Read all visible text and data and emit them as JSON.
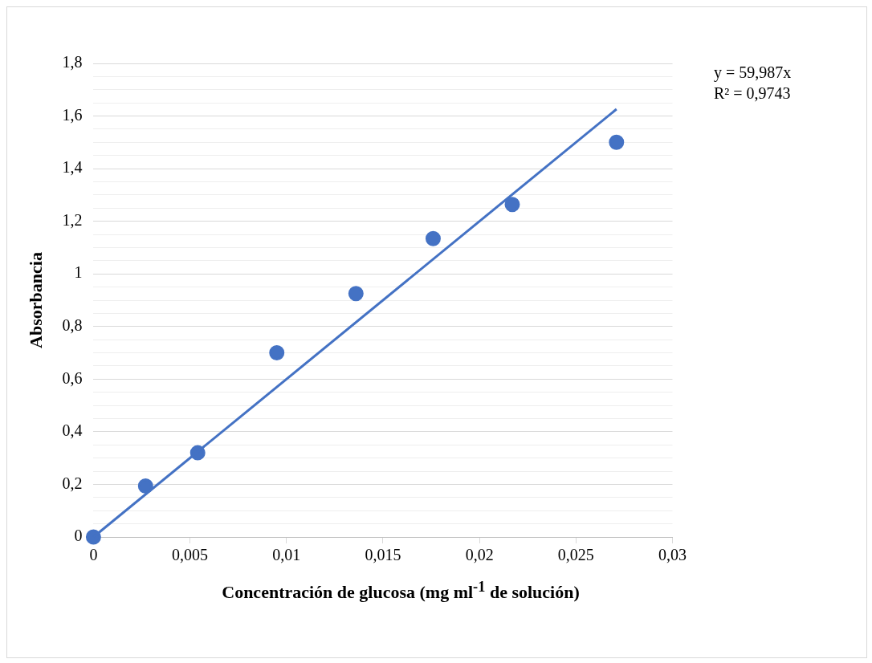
{
  "chart_data": {
    "type": "scatter",
    "xlabel": "Concentración de glucosa (mg ml$^{-1}$ de solución)",
    "ylabel": "Absorbancia",
    "annotations": [
      "y = 59,987x",
      "R² = 0,9743"
    ],
    "series": [
      {
        "color": "#4472c4",
        "marker": "circle",
        "x": [
          0,
          0.0027,
          0.0054,
          0.0095,
          0.0136,
          0.0176,
          0.0217,
          0.0271
        ],
        "values": [
          0,
          0.194,
          0.32,
          0.7,
          0.925,
          1.134,
          1.264,
          1.5
        ]
      },
      {
        "type": "line",
        "color": "#4472c4",
        "marker": "none",
        "line_style": "solid",
        "x": [
          0,
          0.0271
        ],
        "values": [
          0,
          1.626
        ]
      }
    ],
    "xlim": [
      0,
      0.03
    ],
    "xticks": [
      0,
      {
        "value": 0.005,
        "label": "0,005"
      },
      {
        "value": 0.01,
        "label": "0,01"
      },
      {
        "value": 0.015,
        "label": "0,015"
      },
      {
        "value": 0.02,
        "label": "0,02"
      },
      {
        "value": 0.025,
        "label": "0,025"
      },
      {
        "value": 0.03,
        "label": "0,03"
      }
    ],
    "ylim": [
      0,
      1.8
    ],
    "yticks": [
      0,
      {
        "value": 0.05,
        "label": null
      },
      {
        "value": 0.1,
        "label": null
      },
      {
        "value": 0.15,
        "label": null
      },
      {
        "value": 0.2,
        "label": "0,2"
      },
      {
        "value": 0.25,
        "label": null
      },
      {
        "value": 0.3,
        "label": null
      },
      {
        "value": 0.35,
        "label": null
      },
      {
        "value": 0.4,
        "label": "0,4"
      },
      {
        "value": 0.45,
        "label": null
      },
      {
        "value": 0.5,
        "label": null
      },
      {
        "value": 0.55,
        "label": null
      },
      {
        "value": 0.6,
        "label": "0,6"
      },
      {
        "value": 0.65,
        "label": null
      },
      {
        "value": 0.7,
        "label": null
      },
      {
        "value": 0.75,
        "label": null
      },
      {
        "value": 0.8,
        "label": "0,8"
      },
      {
        "value": 0.85,
        "label": null
      },
      {
        "value": 0.9,
        "label": null
      },
      {
        "value": 0.95,
        "label": null
      },
      1,
      {
        "value": 1.05,
        "label": null
      },
      {
        "value": 1.1,
        "label": null
      },
      {
        "value": 1.15,
        "label": null
      },
      {
        "value": 1.2,
        "label": "1,2"
      },
      {
        "value": 1.25,
        "label": null
      },
      {
        "value": 1.3,
        "label": null
      },
      {
        "value": 1.35,
        "label": null
      },
      {
        "value": 1.4,
        "label": "1,4"
      },
      {
        "value": 1.45,
        "label": null
      },
      {
        "value": 1.5,
        "label": null
      },
      {
        "value": 1.55,
        "label": null
      },
      {
        "value": 1.6,
        "label": "1,6"
      },
      {
        "value": 1.65,
        "label": null
      },
      {
        "value": 1.7,
        "label": null
      },
      {
        "value": 1.75,
        "label": null
      },
      {
        "value": 1.8,
        "label": "1,8"
      }
    ],
    "grid": "y",
    "legend": false
  }
}
